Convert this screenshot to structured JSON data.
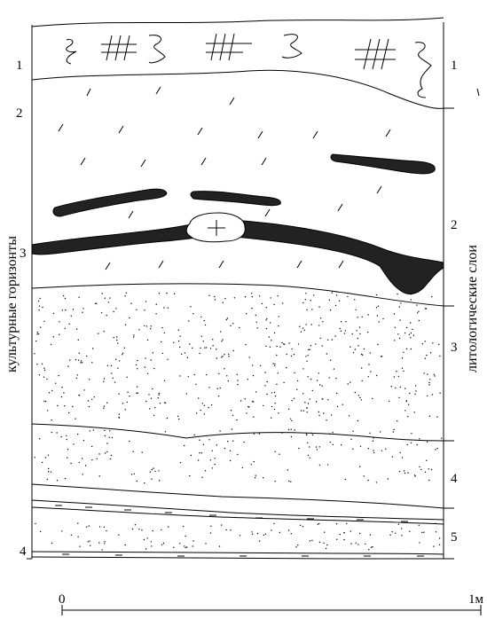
{
  "figure": {
    "left_axis_title": "культурные горизонты",
    "right_axis_title": "литологические слои",
    "cultural_horizons": [
      "1",
      "2",
      "3",
      "4"
    ],
    "lithological_layers": [
      "1",
      "2",
      "3",
      "4",
      "5"
    ],
    "scale": {
      "start": "0",
      "end": "1м"
    }
  }
}
